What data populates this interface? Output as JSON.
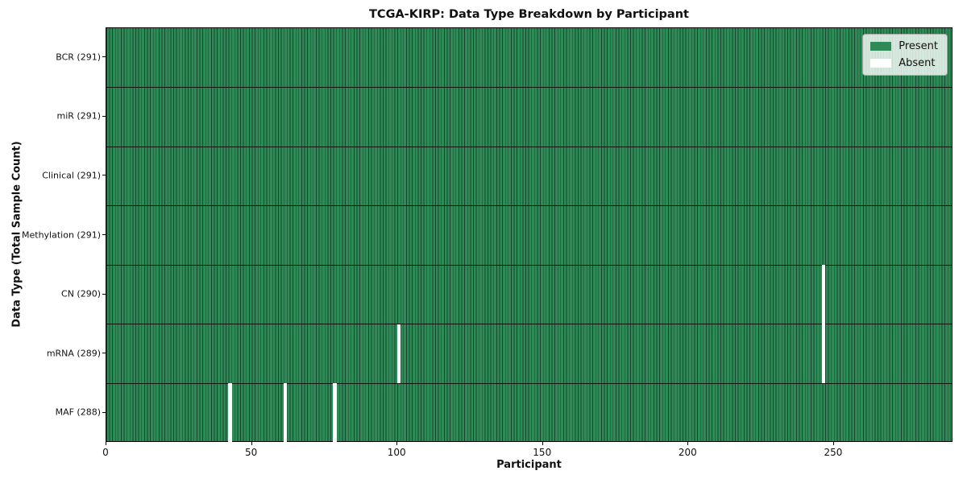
{
  "chart_data": {
    "type": "heatmap",
    "title": "TCGA-KIRP: Data Type Breakdown by Participant",
    "xlabel": "Participant",
    "ylabel": "Data Type (Total Sample Count)",
    "x_range": [
      0,
      291
    ],
    "x_ticks": [
      0,
      50,
      100,
      150,
      200,
      250
    ],
    "n_participants": 291,
    "grid": "cell-borders",
    "legend_position": "upper right",
    "rows": [
      {
        "label": "BCR (291)",
        "data_type": "BCR",
        "total_samples": 291,
        "absent_participants": []
      },
      {
        "label": "miR (291)",
        "data_type": "miR",
        "total_samples": 291,
        "absent_participants": []
      },
      {
        "label": "Clinical (291)",
        "data_type": "Clinical",
        "total_samples": 291,
        "absent_participants": []
      },
      {
        "label": "Methylation (291)",
        "data_type": "Methylation",
        "total_samples": 291,
        "absent_participants": []
      },
      {
        "label": "CN (290)",
        "data_type": "CN",
        "total_samples": 290,
        "absent_participants": [
          246
        ]
      },
      {
        "label": "mRNA (289)",
        "data_type": "mRNA",
        "total_samples": 289,
        "absent_participants": [
          100,
          246
        ]
      },
      {
        "label": "MAF (288)",
        "data_type": "MAF",
        "total_samples": 288,
        "absent_participants": [
          42,
          61,
          78
        ]
      }
    ],
    "legend": [
      {
        "label": "Present",
        "color": "#2e8b57"
      },
      {
        "label": "Absent",
        "color": "#ffffff"
      }
    ],
    "colors": {
      "present": "#2e8b57",
      "absent": "#ffffff",
      "cell_edge": "rgba(0,0,0,0.5)",
      "row_separator": "#101410",
      "spine": "#000000"
    }
  }
}
